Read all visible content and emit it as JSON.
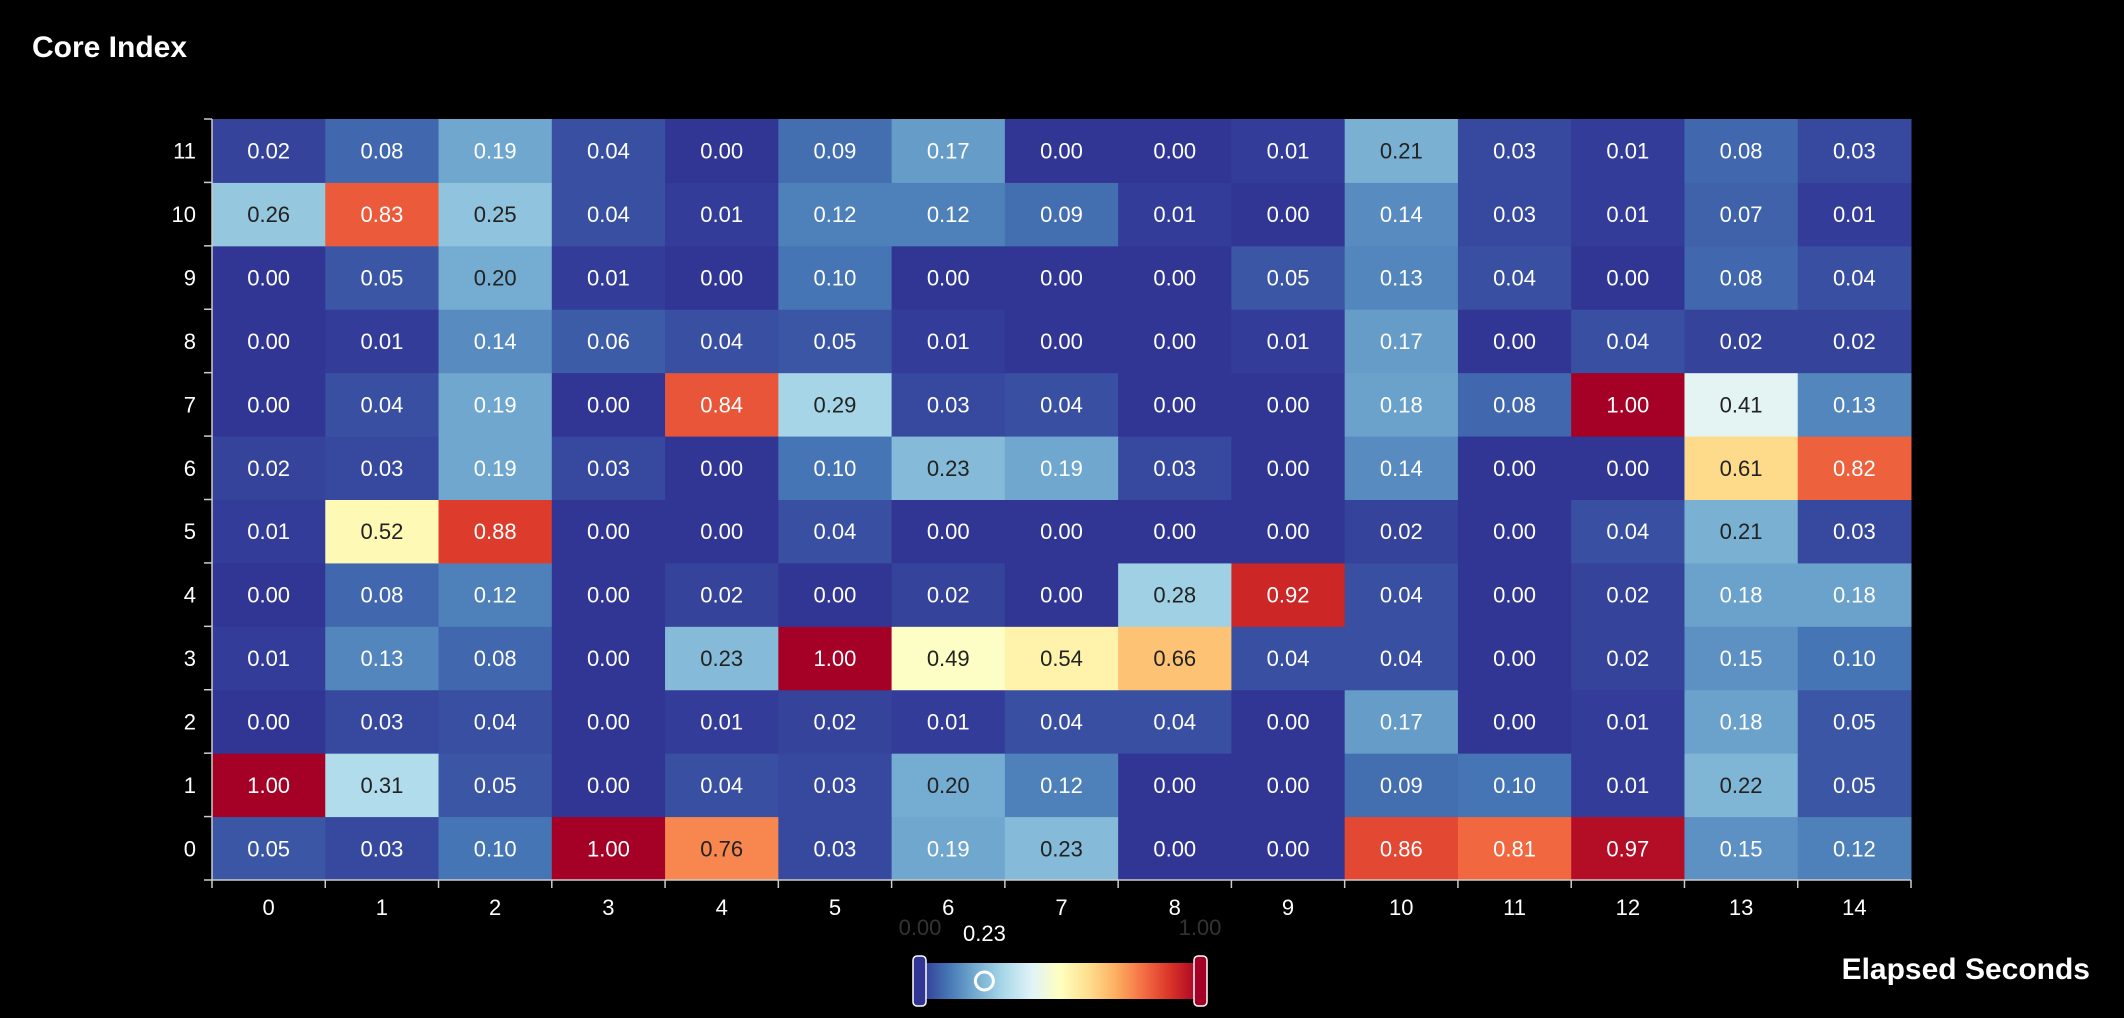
{
  "chart_data": {
    "type": "heatmap",
    "title": "Core Index",
    "xlabel": "Elapsed Seconds",
    "ylabel": "Core Index",
    "x_categories": [
      "0",
      "1",
      "2",
      "3",
      "4",
      "5",
      "6",
      "7",
      "8",
      "9",
      "10",
      "11",
      "12",
      "13",
      "14"
    ],
    "y_categories": [
      "0",
      "1",
      "2",
      "3",
      "4",
      "5",
      "6",
      "7",
      "8",
      "9",
      "10",
      "11"
    ],
    "values": [
      [
        0.05,
        0.03,
        0.1,
        1.0,
        0.76,
        0.03,
        0.19,
        0.23,
        0.0,
        0.0,
        0.86,
        0.81,
        0.97,
        0.15,
        0.12
      ],
      [
        1.0,
        0.31,
        0.05,
        0.0,
        0.04,
        0.03,
        0.2,
        0.12,
        0.0,
        0.0,
        0.09,
        0.1,
        0.01,
        0.22,
        0.05
      ],
      [
        0.0,
        0.03,
        0.04,
        0.0,
        0.01,
        0.02,
        0.01,
        0.04,
        0.04,
        0.0,
        0.17,
        0.0,
        0.01,
        0.18,
        0.05
      ],
      [
        0.01,
        0.13,
        0.08,
        0.0,
        0.23,
        1.0,
        0.49,
        0.54,
        0.66,
        0.04,
        0.04,
        0.0,
        0.02,
        0.15,
        0.1
      ],
      [
        0.0,
        0.08,
        0.12,
        0.0,
        0.02,
        0.0,
        0.02,
        0.0,
        0.28,
        0.92,
        0.04,
        0.0,
        0.02,
        0.18,
        0.18
      ],
      [
        0.01,
        0.52,
        0.88,
        0.0,
        0.0,
        0.04,
        0.0,
        0.0,
        0.0,
        0.0,
        0.02,
        0.0,
        0.04,
        0.21,
        0.03
      ],
      [
        0.02,
        0.03,
        0.19,
        0.03,
        0.0,
        0.1,
        0.23,
        0.19,
        0.03,
        0.0,
        0.14,
        0.0,
        0.0,
        0.61,
        0.82
      ],
      [
        0.0,
        0.04,
        0.19,
        0.0,
        0.84,
        0.29,
        0.03,
        0.04,
        0.0,
        0.0,
        0.18,
        0.08,
        1.0,
        0.41,
        0.13
      ],
      [
        0.0,
        0.01,
        0.14,
        0.06,
        0.04,
        0.05,
        0.01,
        0.0,
        0.0,
        0.01,
        0.17,
        0.0,
        0.04,
        0.02,
        0.02
      ],
      [
        0.0,
        0.05,
        0.2,
        0.01,
        0.0,
        0.1,
        0.0,
        0.0,
        0.0,
        0.05,
        0.13,
        0.04,
        0.0,
        0.08,
        0.04
      ],
      [
        0.26,
        0.83,
        0.25,
        0.04,
        0.01,
        0.12,
        0.12,
        0.09,
        0.01,
        0.0,
        0.14,
        0.03,
        0.01,
        0.07,
        0.01
      ],
      [
        0.02,
        0.08,
        0.19,
        0.04,
        0.0,
        0.09,
        0.17,
        0.0,
        0.0,
        0.01,
        0.21,
        0.03,
        0.01,
        0.08,
        0.03
      ]
    ],
    "color_range": [
      0,
      1
    ],
    "colormap": [
      "#313695",
      "#4575b4",
      "#74add1",
      "#abd9e9",
      "#e0f3f8",
      "#ffffbf",
      "#fee090",
      "#fdae61",
      "#f46d43",
      "#d73027",
      "#a50026"
    ],
    "visual_map": {
      "min_label": "0.00",
      "max_label": "1.00",
      "handle_value": "0.23",
      "handle_fraction": 0.23
    },
    "background_color": "#000000",
    "text_color": "#ffffff"
  }
}
